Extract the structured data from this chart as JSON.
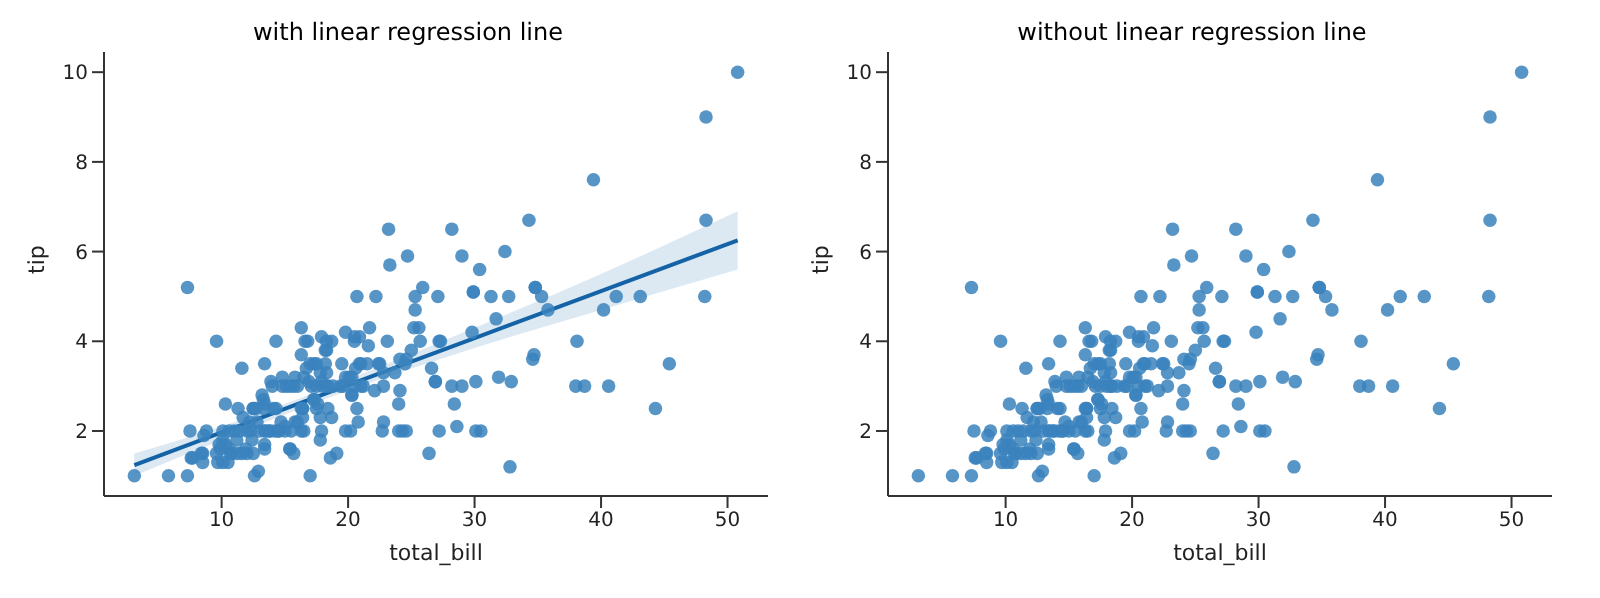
{
  "chart_data": [
    {
      "type": "scatter",
      "title": "with linear regression line",
      "xlabel": "total_bill",
      "ylabel": "tip",
      "xlim": [
        0.7,
        53.2
      ],
      "xticks": [
        10,
        20,
        30,
        40,
        50
      ],
      "ylim": [
        0.55,
        10.45
      ],
      "yticks": [
        2,
        4,
        6,
        8,
        10
      ],
      "series": [
        {
          "color": "#3a82bd",
          "x": [
            17.0,
            10.3,
            21.0,
            23.7,
            24.6,
            25.3,
            8.8,
            26.9,
            15.0,
            14.8,
            35.3,
            15.4,
            18.4,
            14.8,
            21.6,
            16.3,
            17.0,
            20.6,
            17.9,
            20.3,
            15.8,
            39.4,
            19.8,
            17.8,
            13.4,
            21.7,
            19.6,
            9.6,
            18.4,
            15.1,
            20.7,
            17.8,
            24.1,
            16.3,
            16.9,
            18.7,
            31.3,
            16.0,
            17.5,
            13.9,
            9.7,
            30.4,
            18.3,
            22.2,
            32.4,
            28.6,
            18.0,
            12.5,
            10.3,
            34.8,
            9.9,
            25.6,
            19.5,
            38.0,
            26.4,
            11.2,
            48.3,
            20.3,
            13.8,
            11.0,
            18.3,
            17.6,
            20.1,
            16.4,
            3.1,
            20.2,
            15.0,
            12.0,
            17.1,
            26.9,
            25.3,
            14.7,
            10.5,
            17.9,
            27.2,
            22.8,
            17.3,
            19.4,
            16.7,
            10.1,
            32.7,
            34.8,
            18.3,
            24.7,
            21.2,
            29.0,
            22.5,
            5.8,
            16.3,
            22.8,
            40.2,
            27.3,
            12.0,
            21.0,
            12.5,
            11.3,
            15.4,
            44.3,
            22.4,
            20.9,
            15.4,
            20.5,
            25.2,
            18.2,
            14.3,
            14.0,
            7.3,
            38.1,
            24.0,
            25.7,
            17.3,
            29.9,
            10.7,
            12.4,
            24.1,
            11.7,
            13.4,
            14.3,
            12.5,
            29.8,
            8.5,
            14.5,
            11.4,
            22.8,
            19.1,
            20.3,
            11.2,
            12.3,
            18.3,
            8.5,
            14.2,
            13.2,
            17.5,
            34.3,
            41.2,
            27.1,
            16.4,
            8.4,
            18.6,
            11.9,
            9.8,
            7.5,
            14.1,
            17.3,
            24.6,
            19.8,
            29.9,
            48.2,
            25.0,
            13.4,
            16.5,
            21.5,
            12.7,
            13.8,
            17.5,
            24.5,
            20.8,
            31.7,
            10.6,
            10.6,
            50.8,
            15.8,
            7.3,
            31.9,
            16.8,
            32.9,
            17.9,
            14.5,
            9.6,
            34.6,
            34.7,
            23.3,
            45.4,
            23.2,
            40.6,
            20.7,
            20.9,
            30.5,
            18.2,
            23.1,
            15.7,
            19.8,
            28.4,
            15.5,
            16.6,
            7.6,
            43.1,
            13.0,
            13.5,
            18.7,
            16.4,
            20.5,
            16.5,
            26.6,
            38.7,
            24.3,
            12.8,
            30.1,
            25.9,
            48.3,
            13.3,
            28.2,
            12.9,
            28.2,
            11.6,
            7.7,
            30.1,
            12.2,
            13.4,
            8.6,
            16.0,
            13.4,
            16.3,
            10.1,
            20.5,
            13.3,
            22.1,
            24.0,
            15.7,
            11.6,
            10.8,
            10.1,
            12.6,
            32.8,
            35.8,
            29.0,
            27.2,
            22.7,
            17.8,
            18.8
          ],
          "values": [
            1.0,
            1.7,
            3.5,
            3.3,
            3.6,
            4.7,
            2.0,
            3.1,
            2.0,
            3.2,
            5.0,
            1.6,
            3.0,
            3.0,
            3.9,
            3.7,
            3.5,
            3.4,
            4.1,
            2.8,
            2.2,
            7.6,
            3.2,
            2.3,
            2.0,
            4.3,
            3.0,
            1.5,
            2.5,
            3.0,
            2.5,
            3.3,
            3.6,
            2.0,
            3.1,
            2.3,
            5.0,
            2.2,
            2.5,
            3.1,
            1.3,
            5.6,
            3.0,
            5.0,
            6.0,
            2.1,
            3.0,
            2.5,
            2.6,
            5.2,
            1.6,
            4.3,
            3.5,
            3.0,
            1.5,
            1.8,
            6.7,
            3.2,
            2.0,
            2.0,
            3.8,
            2.6,
            3.2,
            2.5,
            1.0,
            2.0,
            2.1,
            2.0,
            3.0,
            3.1,
            5.0,
            2.2,
            1.3,
            3.1,
            4.0,
            3.0,
            2.7,
            3.0,
            3.4,
            1.8,
            5.0,
            5.2,
            4.0,
            5.9,
            3.0,
            3.0,
            3.5,
            1.0,
            4.3,
            3.3,
            4.7,
            4.0,
            1.5,
            3.0,
            1.5,
            2.5,
            3.0,
            2.5,
            3.5,
            4.1,
            1.6,
            4.1,
            4.3,
            3.8,
            4.0,
            3.0,
            1.0,
            4.0,
            2.6,
            4.0,
            3.5,
            5.1,
            1.5,
            1.8,
            2.9,
            2.3,
            1.7,
            2.5,
            2.5,
            4.2,
            1.5,
            2.0,
            2.0,
            2.2,
            1.5,
            2.8,
            1.5,
            2.0,
            3.3,
            1.3,
            2.0,
            2.8,
            3.5,
            6.7,
            5.0,
            5.0,
            2.3,
            1.5,
            1.4,
            1.6,
            1.7,
            2.0,
            2.5,
            2.7,
            2.0,
            2.0,
            5.1,
            5.0,
            3.8,
            2.6,
            2.0,
            3.5,
            2.5,
            2.0,
            3.0,
            3.5,
            2.2,
            4.5,
            1.6,
            2.0,
            10.0,
            3.2,
            5.2,
            3.2,
            4.0,
            3.1,
            2.0,
            2.0,
            4.0,
            3.6,
            3.7,
            5.7,
            3.5,
            6.5,
            3.0,
            5.0,
            3.5,
            2.0,
            3.5,
            4.0,
            1.5,
            4.2,
            2.6,
            2.0,
            4.0,
            1.4,
            5.0,
            2.0,
            2.0,
            4.0,
            2.5,
            4.0,
            3.2,
            3.4,
            3.0,
            2.0,
            2.2,
            2.0,
            5.2,
            9.0,
            2.5,
            6.5,
            1.1,
            3.0,
            1.5,
            1.4,
            3.1,
            2.2,
            3.5,
            1.9,
            3.0,
            1.6,
            2.5,
            2.0,
            3.0,
            2.7,
            2.9,
            2.0,
            3.0,
            3.4,
            1.5,
            1.3,
            1.0,
            1.2,
            4.7,
            5.9,
            2.0,
            2.0,
            1.8,
            3.0
          ]
        },
        {
          "type": "line",
          "color": "#1463a6",
          "x": [
            3.1,
            10,
            20,
            30,
            40,
            50.8
          ],
          "values": [
            1.24,
            1.97,
            3.02,
            4.07,
            5.12,
            6.25
          ],
          "lower": [
            1.0,
            1.8,
            2.9,
            3.85,
            4.7,
            5.6
          ],
          "upper": [
            1.5,
            2.1,
            3.15,
            4.3,
            5.5,
            6.9
          ]
        }
      ]
    },
    {
      "type": "scatter",
      "title": "without linear regression line",
      "xlabel": "total_bill",
      "ylabel": "tip",
      "xlim": [
        0.7,
        53.2
      ],
      "xticks": [
        10,
        20,
        30,
        40,
        50
      ],
      "ylim": [
        0.55,
        10.45
      ],
      "yticks": [
        2,
        4,
        6,
        8,
        10
      ],
      "series": [
        {
          "color": "#3a82bd",
          "x": [
            17.0,
            10.3,
            21.0,
            23.7,
            24.6,
            25.3,
            8.8,
            26.9,
            15.0,
            14.8,
            35.3,
            15.4,
            18.4,
            14.8,
            21.6,
            16.3,
            17.0,
            20.6,
            17.9,
            20.3,
            15.8,
            39.4,
            19.8,
            17.8,
            13.4,
            21.7,
            19.6,
            9.6,
            18.4,
            15.1,
            20.7,
            17.8,
            24.1,
            16.3,
            16.9,
            18.7,
            31.3,
            16.0,
            17.5,
            13.9,
            9.7,
            30.4,
            18.3,
            22.2,
            32.4,
            28.6,
            18.0,
            12.5,
            10.3,
            34.8,
            9.9,
            25.6,
            19.5,
            38.0,
            26.4,
            11.2,
            48.3,
            20.3,
            13.8,
            11.0,
            18.3,
            17.6,
            20.1,
            16.4,
            3.1,
            20.2,
            15.0,
            12.0,
            17.1,
            26.9,
            25.3,
            14.7,
            10.5,
            17.9,
            27.2,
            22.8,
            17.3,
            19.4,
            16.7,
            10.1,
            32.7,
            34.8,
            18.3,
            24.7,
            21.2,
            29.0,
            22.5,
            5.8,
            16.3,
            22.8,
            40.2,
            27.3,
            12.0,
            21.0,
            12.5,
            11.3,
            15.4,
            44.3,
            22.4,
            20.9,
            15.4,
            20.5,
            25.2,
            18.2,
            14.3,
            14.0,
            7.3,
            38.1,
            24.0,
            25.7,
            17.3,
            29.9,
            10.7,
            12.4,
            24.1,
            11.7,
            13.4,
            14.3,
            12.5,
            29.8,
            8.5,
            14.5,
            11.4,
            22.8,
            19.1,
            20.3,
            11.2,
            12.3,
            18.3,
            8.5,
            14.2,
            13.2,
            17.5,
            34.3,
            41.2,
            27.1,
            16.4,
            8.4,
            18.6,
            11.9,
            9.8,
            7.5,
            14.1,
            17.3,
            24.6,
            19.8,
            29.9,
            48.2,
            25.0,
            13.4,
            16.5,
            21.5,
            12.7,
            13.8,
            17.5,
            24.5,
            20.8,
            31.7,
            10.6,
            10.6,
            50.8,
            15.8,
            7.3,
            31.9,
            16.8,
            32.9,
            17.9,
            14.5,
            9.6,
            34.6,
            34.7,
            23.3,
            45.4,
            23.2,
            40.6,
            20.7,
            20.9,
            30.5,
            18.2,
            23.1,
            15.7,
            19.8,
            28.4,
            15.5,
            16.6,
            7.6,
            43.1,
            13.0,
            13.5,
            18.7,
            16.4,
            20.5,
            16.5,
            26.6,
            38.7,
            24.3,
            12.8,
            30.1,
            25.9,
            48.3,
            13.3,
            28.2,
            12.9,
            28.2,
            11.6,
            7.7,
            30.1,
            12.2,
            13.4,
            8.6,
            16.0,
            13.4,
            16.3,
            10.1,
            20.5,
            13.3,
            22.1,
            24.0,
            15.7,
            11.6,
            10.8,
            10.1,
            12.6,
            32.8,
            35.8,
            29.0,
            27.2,
            22.7,
            17.8,
            18.8
          ],
          "values": [
            1.0,
            1.7,
            3.5,
            3.3,
            3.6,
            4.7,
            2.0,
            3.1,
            2.0,
            3.2,
            5.0,
            1.6,
            3.0,
            3.0,
            3.9,
            3.7,
            3.5,
            3.4,
            4.1,
            2.8,
            2.2,
            7.6,
            3.2,
            2.3,
            2.0,
            4.3,
            3.0,
            1.5,
            2.5,
            3.0,
            2.5,
            3.3,
            3.6,
            2.0,
            3.1,
            2.3,
            5.0,
            2.2,
            2.5,
            3.1,
            1.3,
            5.6,
            3.0,
            5.0,
            6.0,
            2.1,
            3.0,
            2.5,
            2.6,
            5.2,
            1.6,
            4.3,
            3.5,
            3.0,
            1.5,
            1.8,
            6.7,
            3.2,
            2.0,
            2.0,
            3.8,
            2.6,
            3.2,
            2.5,
            1.0,
            2.0,
            2.1,
            2.0,
            3.0,
            3.1,
            5.0,
            2.2,
            1.3,
            3.1,
            4.0,
            3.0,
            2.7,
            3.0,
            3.4,
            1.8,
            5.0,
            5.2,
            4.0,
            5.9,
            3.0,
            3.0,
            3.5,
            1.0,
            4.3,
            3.3,
            4.7,
            4.0,
            1.5,
            3.0,
            1.5,
            2.5,
            3.0,
            2.5,
            3.5,
            4.1,
            1.6,
            4.1,
            4.3,
            3.8,
            4.0,
            3.0,
            1.0,
            4.0,
            2.6,
            4.0,
            3.5,
            5.1,
            1.5,
            1.8,
            2.9,
            2.3,
            1.7,
            2.5,
            2.5,
            4.2,
            1.5,
            2.0,
            2.0,
            2.2,
            1.5,
            2.8,
            1.5,
            2.0,
            3.3,
            1.3,
            2.0,
            2.8,
            3.5,
            6.7,
            5.0,
            5.0,
            2.3,
            1.5,
            1.4,
            1.6,
            1.7,
            2.0,
            2.5,
            2.7,
            2.0,
            2.0,
            5.1,
            5.0,
            3.8,
            2.6,
            2.0,
            3.5,
            2.5,
            2.0,
            3.0,
            3.5,
            2.2,
            4.5,
            1.6,
            2.0,
            10.0,
            3.2,
            5.2,
            3.2,
            4.0,
            3.1,
            2.0,
            2.0,
            4.0,
            3.6,
            3.7,
            5.7,
            3.5,
            6.5,
            3.0,
            5.0,
            3.5,
            2.0,
            3.5,
            4.0,
            1.5,
            4.2,
            2.6,
            2.0,
            4.0,
            1.4,
            5.0,
            2.0,
            2.0,
            4.0,
            2.5,
            4.0,
            3.2,
            3.4,
            3.0,
            2.0,
            2.2,
            2.0,
            5.2,
            9.0,
            2.5,
            6.5,
            1.1,
            3.0,
            1.5,
            1.4,
            3.1,
            2.2,
            3.5,
            1.9,
            3.0,
            1.6,
            2.5,
            2.0,
            3.0,
            2.7,
            2.9,
            2.0,
            3.0,
            3.4,
            1.5,
            1.3,
            1.0,
            1.2,
            4.7,
            5.9,
            2.0,
            2.0,
            1.8,
            3.0
          ]
        }
      ]
    }
  ]
}
